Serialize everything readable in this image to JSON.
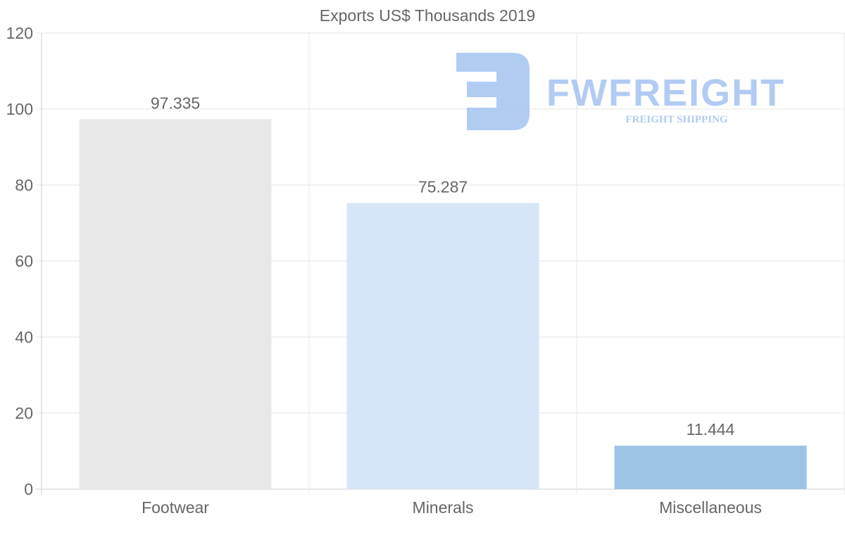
{
  "chart_data": {
    "type": "bar",
    "title": "Exports US$ Thousands 2019",
    "categories": [
      "Footwear",
      "Minerals",
      "Miscellaneous"
    ],
    "values": [
      97.335,
      75.287,
      11.444
    ],
    "value_labels": [
      "97.335",
      "75.287",
      "11.444"
    ],
    "colors": [
      "#e8e8e8",
      "#d6e6f8",
      "#9dc3e6"
    ],
    "xlabel": "",
    "ylabel": "",
    "ylim": [
      0,
      120
    ],
    "yticks": [
      0,
      20,
      40,
      60,
      80,
      100,
      120
    ],
    "grid": true,
    "legend": "none"
  },
  "watermark": {
    "brand": "FWFREIGHT",
    "tagline": "FREIGHT SHIPPING",
    "color": "#a9c6f2"
  }
}
